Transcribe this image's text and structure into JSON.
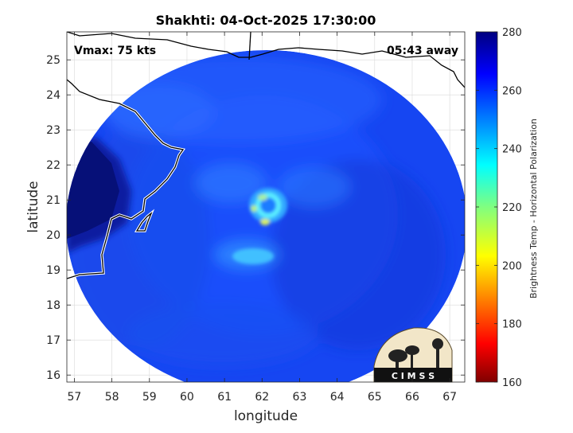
{
  "title": "Shakhti: 04-Oct-2025 17:30:00",
  "vmax_label": "Vmax: 75 kts",
  "time_away_label": "05:43 away",
  "xlabel": "longitude",
  "ylabel": "latitude",
  "colorbar": {
    "label": "Brightness Temp - Horizontal Polarization",
    "range": [
      160,
      280
    ],
    "ticks": [
      "160",
      "180",
      "200",
      "220",
      "240",
      "260",
      "280"
    ]
  },
  "logo": {
    "text": "C I M S S"
  },
  "chart_data": {
    "type": "heatmap",
    "title": "Shakhti: 04-Oct-2025 17:30:00",
    "xlabel": "longitude",
    "ylabel": "latitude",
    "xlim": [
      56.8,
      67.4
    ],
    "ylim": [
      15.8,
      25.8
    ],
    "xticks": [
      "57",
      "58",
      "59",
      "60",
      "61",
      "62",
      "63",
      "64",
      "65",
      "66",
      "67"
    ],
    "yticks": [
      "16",
      "17",
      "18",
      "19",
      "20",
      "21",
      "22",
      "23",
      "24",
      "25"
    ],
    "grid": true,
    "colormap": "jet",
    "value_range": [
      160,
      280
    ],
    "swath_center": {
      "lon": 62.0,
      "lat": 20.7
    },
    "storm_eye": {
      "lon": 62.2,
      "lat": 20.6
    }
  }
}
